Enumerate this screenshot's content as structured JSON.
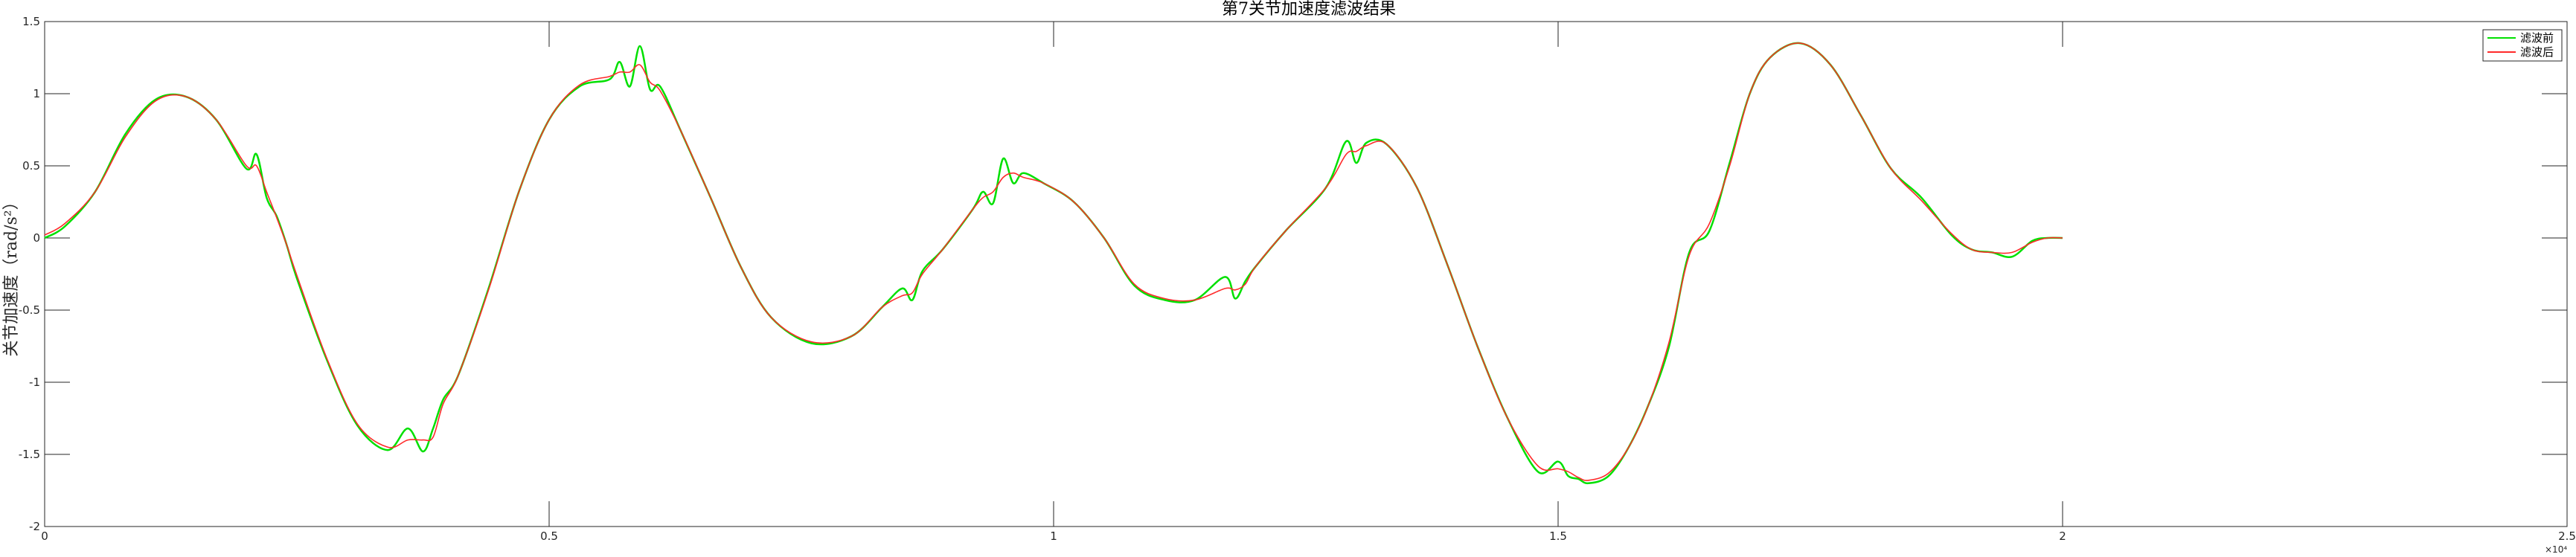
{
  "chart_data": {
    "type": "line",
    "title": "第7关节加速度滤波结果",
    "ylabel": "关节加速度（rad/s²）",
    "xlabel": "",
    "xlim": [
      0,
      25000
    ],
    "ylim": [
      -2,
      1.5
    ],
    "x_exponent_label": "×10⁴",
    "x_ticks": [
      {
        "value": 0,
        "label": "0"
      },
      {
        "value": 5000,
        "label": "0.5"
      },
      {
        "value": 10000,
        "label": "1"
      },
      {
        "value": 15000,
        "label": "1.5"
      },
      {
        "value": 20000,
        "label": "2"
      },
      {
        "value": 25000,
        "label": "2.5"
      }
    ],
    "y_ticks": [
      {
        "value": 1.5,
        "label": "1.5"
      },
      {
        "value": 1,
        "label": "1"
      },
      {
        "value": 0.5,
        "label": "0.5"
      },
      {
        "value": 0,
        "label": "0"
      },
      {
        "value": -0.5,
        "label": "-0.5"
      },
      {
        "value": -1,
        "label": "-1"
      },
      {
        "value": -1.5,
        "label": "-1.5"
      },
      {
        "value": -2,
        "label": "-2"
      }
    ],
    "legend_position": "top-right",
    "grid": false,
    "series": [
      {
        "name": "滤波前",
        "color": "#00e000",
        "x": [
          0,
          200,
          500,
          800,
          1100,
          1400,
          1700,
          2000,
          2100,
          2200,
          2300,
          2400,
          2500,
          2800,
          3100,
          3400,
          3600,
          3750,
          3850,
          3950,
          4100,
          4400,
          4700,
          5000,
          5300,
          5600,
          5700,
          5800,
          5900,
          6000,
          6100,
          6300,
          6600,
          6900,
          7200,
          7600,
          8000,
          8300,
          8500,
          8600,
          8700,
          8900,
          9200,
          9300,
          9400,
          9500,
          9600,
          9700,
          9900,
          10200,
          10500,
          10800,
          11100,
          11400,
          11700,
          11800,
          11900,
          12000,
          12300,
          12700,
          12900,
          13000,
          13100,
          13300,
          13600,
          13900,
          14200,
          14500,
          14800,
          15000,
          15100,
          15200,
          15300,
          15500,
          15700,
          15900,
          16100,
          16300,
          16500,
          16700,
          16900,
          17100,
          17400,
          17700,
          18000,
          18300,
          18600,
          18900,
          19100,
          19300,
          19500,
          19700,
          19850,
          20000
        ],
        "y": [
          0,
          0.08,
          0.32,
          0.72,
          0.96,
          0.98,
          0.82,
          0.48,
          0.58,
          0.28,
          0.15,
          -0.05,
          -0.28,
          -0.85,
          -1.3,
          -1.47,
          -1.32,
          -1.48,
          -1.32,
          -1.12,
          -0.95,
          -0.35,
          0.32,
          0.82,
          1.05,
          1.1,
          1.22,
          1.05,
          1.33,
          1.03,
          1.05,
          0.75,
          0.28,
          -0.2,
          -0.55,
          -0.73,
          -0.68,
          -0.48,
          -0.35,
          -0.43,
          -0.23,
          -0.08,
          0.2,
          0.32,
          0.24,
          0.55,
          0.38,
          0.45,
          0.38,
          0.25,
          0.0,
          -0.33,
          -0.43,
          -0.43,
          -0.27,
          -0.42,
          -0.3,
          -0.2,
          0.05,
          0.35,
          0.67,
          0.52,
          0.66,
          0.65,
          0.35,
          -0.18,
          -0.75,
          -1.25,
          -1.62,
          -1.55,
          -1.65,
          -1.67,
          -1.7,
          -1.65,
          -1.45,
          -1.15,
          -0.75,
          -0.1,
          0.05,
          0.52,
          1.0,
          1.25,
          1.35,
          1.2,
          0.85,
          0.48,
          0.28,
          0.02,
          -0.08,
          -0.1,
          -0.13,
          -0.02,
          0.0,
          0.0
        ]
      },
      {
        "name": "滤波后",
        "color": "#ff2a2a",
        "x": [
          0,
          200,
          500,
          800,
          1100,
          1400,
          1700,
          2000,
          2100,
          2200,
          2300,
          2400,
          2500,
          2800,
          3100,
          3400,
          3600,
          3750,
          3850,
          3950,
          4100,
          4400,
          4700,
          5000,
          5300,
          5600,
          5700,
          5800,
          5900,
          6000,
          6100,
          6300,
          6600,
          6900,
          7200,
          7600,
          8000,
          8300,
          8500,
          8600,
          8700,
          8900,
          9200,
          9300,
          9400,
          9500,
          9600,
          9700,
          9900,
          10200,
          10500,
          10800,
          11100,
          11400,
          11700,
          11800,
          11900,
          12000,
          12300,
          12700,
          12900,
          13000,
          13100,
          13300,
          13600,
          13900,
          14200,
          14500,
          14800,
          15000,
          15100,
          15200,
          15300,
          15500,
          15700,
          15900,
          16100,
          16300,
          16500,
          16700,
          16900,
          17100,
          17400,
          17700,
          18000,
          18300,
          18600,
          18900,
          19100,
          19300,
          19500,
          19700,
          19850,
          20000
        ],
        "y": [
          0.02,
          0.1,
          0.32,
          0.7,
          0.95,
          0.98,
          0.82,
          0.5,
          0.5,
          0.32,
          0.14,
          -0.05,
          -0.26,
          -0.84,
          -1.29,
          -1.45,
          -1.4,
          -1.4,
          -1.38,
          -1.15,
          -0.95,
          -0.36,
          0.32,
          0.82,
          1.06,
          1.12,
          1.15,
          1.15,
          1.2,
          1.08,
          1.02,
          0.75,
          0.28,
          -0.2,
          -0.55,
          -0.72,
          -0.68,
          -0.48,
          -0.4,
          -0.38,
          -0.25,
          -0.08,
          0.2,
          0.28,
          0.32,
          0.42,
          0.45,
          0.42,
          0.38,
          0.25,
          0.0,
          -0.32,
          -0.42,
          -0.43,
          -0.35,
          -0.36,
          -0.32,
          -0.2,
          0.05,
          0.35,
          0.58,
          0.6,
          0.64,
          0.65,
          0.35,
          -0.18,
          -0.75,
          -1.25,
          -1.58,
          -1.6,
          -1.62,
          -1.66,
          -1.68,
          -1.63,
          -1.45,
          -1.15,
          -0.72,
          -0.12,
          0.1,
          0.5,
          1.0,
          1.25,
          1.35,
          1.2,
          0.85,
          0.48,
          0.26,
          0.03,
          -0.08,
          -0.1,
          -0.1,
          -0.03,
          0.0,
          0.0
        ]
      }
    ]
  }
}
